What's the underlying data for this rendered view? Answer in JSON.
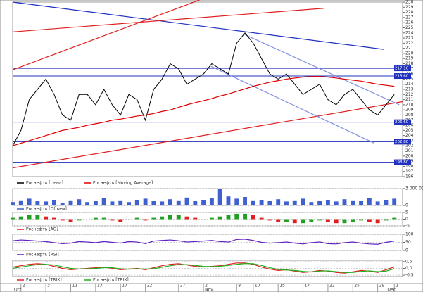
{
  "chart_data": [
    {
      "type": "line",
      "xlim": [
        0,
        47
      ],
      "ylim": [
        196,
        230
      ],
      "yticks": [
        196,
        197,
        198,
        199,
        200,
        201,
        202,
        203,
        204,
        205,
        206,
        207,
        208,
        209,
        210,
        211,
        212,
        213,
        214,
        215,
        216,
        217,
        218,
        219,
        220,
        221,
        222,
        223,
        224,
        225,
        226,
        227,
        228,
        229,
        230
      ],
      "series": [
        {
          "name": "Роснефть [Цена]",
          "color": "#000000",
          "values": [
            202,
            205,
            211,
            213,
            215,
            212,
            208,
            207,
            212,
            212,
            210,
            213,
            210,
            208,
            212,
            211,
            207,
            213,
            215,
            218,
            217,
            214,
            215,
            216,
            218,
            217,
            216,
            222,
            224,
            222,
            219,
            216,
            215,
            216,
            214,
            212,
            213,
            214,
            211,
            210,
            212,
            213,
            211,
            209,
            208,
            210,
            212
          ]
        },
        {
          "name": "Роснефть [Moving Average]",
          "color": "#e00000",
          "values": [
            202,
            202.5,
            203,
            203.5,
            204,
            204.5,
            205,
            205.3,
            205.6,
            206,
            206.3,
            206.6,
            207,
            207.2,
            207.5,
            207.8,
            208,
            208.3,
            208.7,
            209,
            209.5,
            210,
            210.4,
            210.8,
            211.2,
            211.7,
            212.1,
            212.6,
            213.1,
            213.6,
            214,
            214.4,
            214.7,
            215,
            215.2,
            215.4,
            215.5,
            215.5,
            215.4,
            215.2,
            215,
            214.8,
            214.6,
            214.3,
            214,
            213.8,
            213.6
          ]
        }
      ],
      "trend_lines": [
        {
          "color": "#2030c0",
          "x": [
            0,
            44.7
          ],
          "values": [
            230,
            220.8
          ]
        },
        {
          "color": "#e02020",
          "x": [
            0,
            23
          ],
          "values": [
            216.8,
            230.7
          ]
        },
        {
          "color": "#e02020",
          "x": [
            0,
            37.5
          ],
          "values": [
            224.2,
            228.8
          ]
        },
        {
          "color": "#e02020",
          "x": [
            0,
            47
          ],
          "values": [
            197.7,
            210.6
          ]
        },
        {
          "color": "#8090e0",
          "x": [
            27.8,
            46.6
          ],
          "values": [
            223.8,
            210
          ]
        },
        {
          "color": "#8090e0",
          "x": [
            23.9,
            43.6
          ],
          "values": [
            217.5,
            202.5
          ]
        }
      ],
      "levels": [
        {
          "value": 217.1,
          "label": "217.10"
        },
        {
          "value": 215.6,
          "label": "215.60"
        },
        {
          "value": 206.6,
          "label": "206.60"
        },
        {
          "value": 202.8,
          "label": "202.80"
        },
        {
          "value": 198.8,
          "label": "198.80"
        }
      ],
      "level_color": "#2030c0"
    },
    {
      "type": "bar",
      "xlim": [
        0,
        47
      ],
      "ylim": [
        0,
        3000000
      ],
      "yticks": [
        {
          "value": 3000000,
          "label": "3 000 000"
        },
        0
      ],
      "series": [
        {
          "name": "Роснефть [Объем]",
          "color": "#4060d0",
          "values": [
            600000,
            900000,
            1200000,
            800000,
            700000,
            1000000,
            500000,
            900000,
            1100000,
            600000,
            800000,
            1300000,
            700000,
            900000,
            600000,
            1000000,
            1200000,
            800000,
            700000,
            1100000,
            900000,
            1400000,
            800000,
            1000000,
            1300000,
            3000000,
            1600000,
            1200000,
            1500000,
            900000,
            1000000,
            800000,
            1100000,
            700000,
            900000,
            1200000,
            600000,
            800000,
            1000000,
            700000,
            1100000,
            900000,
            800000,
            1300000,
            700000,
            1000000,
            1200000
          ]
        }
      ]
    },
    {
      "type": "bar",
      "xlim": [
        0,
        47
      ],
      "ylim": [
        -5,
        5
      ],
      "yticks": [
        5,
        0,
        -5
      ],
      "up_color": "#20a020",
      "down_color": "#e02020",
      "series": [
        {
          "name": "Роснефть [AO]",
          "color": "#e02020",
          "values": [
            1,
            2,
            3,
            3,
            2,
            1,
            -1,
            -2,
            -1,
            0,
            1,
            1,
            -1,
            -2,
            0,
            1,
            -1,
            1,
            2,
            3,
            3,
            2,
            1,
            0,
            1,
            2,
            3,
            4,
            4,
            3,
            1,
            -1,
            -2,
            -2,
            -3,
            -3,
            -2,
            -1,
            -2,
            -3,
            -3,
            -2,
            -1,
            -2,
            -3,
            -1,
            1
          ]
        }
      ]
    },
    {
      "type": "line",
      "xlim": [
        0,
        47
      ],
      "ylim": [
        0,
        100
      ],
      "yticks": [
        100,
        50,
        0
      ],
      "series": [
        {
          "name": "Роснефть [RSI]",
          "color": "#6020c0",
          "values": [
            60,
            65,
            62,
            58,
            55,
            48,
            42,
            45,
            55,
            52,
            48,
            55,
            50,
            45,
            55,
            52,
            42,
            58,
            62,
            65,
            60,
            52,
            55,
            58,
            62,
            55,
            52,
            68,
            70,
            62,
            50,
            45,
            48,
            52,
            45,
            40,
            48,
            52,
            42,
            40,
            48,
            52,
            45,
            40,
            38,
            50,
            58
          ]
        }
      ]
    },
    {
      "type": "line",
      "xlim": [
        0,
        47
      ],
      "ylim": [
        -0.6,
        0.6
      ],
      "yticks": [
        {
          "value": 0.5,
          "label": "0,5"
        },
        {
          "value": 0,
          "label": "0,0"
        },
        {
          "value": -0.5,
          "label": "-0,5"
        }
      ],
      "series": [
        {
          "name": "Роснефть [TRIX]",
          "color": "#e02020",
          "values": [
            0.1,
            0.2,
            0.3,
            0.35,
            0.3,
            0.15,
            0,
            -0.1,
            -0.05,
            0,
            0.05,
            0.1,
            0,
            -0.1,
            -0.05,
            0,
            -0.1,
            0.05,
            0.2,
            0.3,
            0.35,
            0.25,
            0.15,
            0.1,
            0.15,
            0.2,
            0.3,
            0.4,
            0.4,
            0.3,
            0.1,
            -0.05,
            -0.15,
            -0.1,
            -0.2,
            -0.3,
            -0.25,
            -0.15,
            -0.2,
            -0.3,
            -0.35,
            -0.25,
            -0.15,
            -0.2,
            -0.3,
            -0.1,
            0.1
          ]
        },
        {
          "name": "Роснефть [TRIX]",
          "color": "#20b020",
          "values": [
            0,
            0.1,
            0.2,
            0.28,
            0.3,
            0.25,
            0.12,
            0,
            -0.05,
            -0.03,
            0,
            0.05,
            0.05,
            -0.03,
            -0.06,
            -0.03,
            -0.05,
            -0.02,
            0.08,
            0.2,
            0.28,
            0.28,
            0.22,
            0.15,
            0.13,
            0.16,
            0.22,
            0.3,
            0.36,
            0.35,
            0.22,
            0.05,
            -0.08,
            -0.12,
            -0.15,
            -0.22,
            -0.26,
            -0.2,
            -0.18,
            -0.24,
            -0.3,
            -0.3,
            -0.22,
            -0.18,
            -0.24,
            -0.2,
            -0.02
          ]
        }
      ],
      "xticks": [
        {
          "value": 1,
          "label": "2"
        },
        {
          "value": 4,
          "label": "3"
        },
        {
          "value": 7,
          "label": "11"
        },
        {
          "value": 10,
          "label": "13"
        },
        {
          "value": 13,
          "label": "17"
        },
        {
          "value": 16,
          "label": "22"
        },
        {
          "value": 20,
          "label": "27"
        },
        {
          "value": 23,
          "label": "2"
        },
        {
          "value": 27,
          "label": "8"
        },
        {
          "value": 29,
          "label": "10"
        },
        {
          "value": 32,
          "label": "15"
        },
        {
          "value": 35,
          "label": "17"
        },
        {
          "value": 38,
          "label": "22"
        },
        {
          "value": 41,
          "label": "25"
        },
        {
          "value": 44,
          "label": "29"
        },
        {
          "value": 46,
          "label": "1"
        }
      ],
      "month_ticks": [
        {
          "value": 0,
          "label": "Oct"
        },
        {
          "value": 23,
          "label": "Nov"
        },
        {
          "value": 45,
          "label": "Dec"
        }
      ]
    }
  ]
}
